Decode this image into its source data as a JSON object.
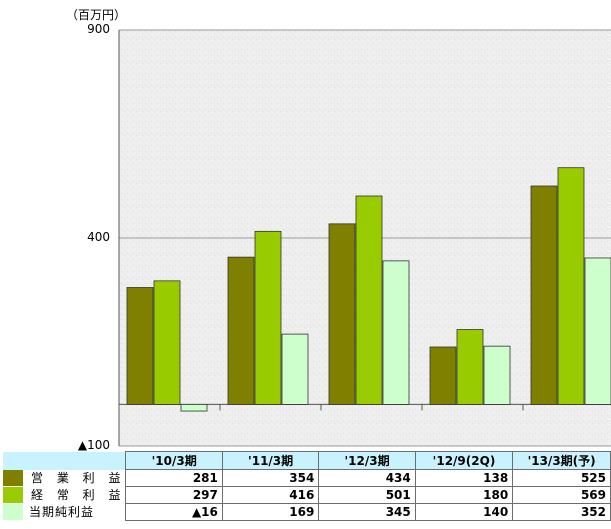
{
  "chart_data": {
    "type": "bar",
    "unit_label": "（百万円）",
    "categories": [
      "'10/3期",
      "'11/3期",
      "'12/3期",
      "'12/9(2Q)",
      "'13/3期(予)"
    ],
    "series": [
      {
        "name": "営 業 利 益",
        "color": "#808000",
        "values": [
          281,
          354,
          434,
          138,
          525
        ],
        "labels": [
          "281",
          "354",
          "434",
          "138",
          "525"
        ]
      },
      {
        "name": "経 常 利 益",
        "color": "#99cc00",
        "values": [
          297,
          416,
          501,
          180,
          569
        ],
        "labels": [
          "297",
          "416",
          "501",
          "180",
          "569"
        ]
      },
      {
        "name": "当期純利益",
        "color": "#ccffcc",
        "values": [
          -16,
          169,
          345,
          140,
          352
        ],
        "labels": [
          "▲16",
          "169",
          "345",
          "140",
          "352"
        ]
      }
    ],
    "ylim": [
      -100,
      900
    ],
    "ytick_labels": [
      {
        "value": 900,
        "label": "900"
      },
      {
        "value": 400,
        "label": "400"
      },
      {
        "value": -100,
        "label": "▲100"
      }
    ],
    "grid": true,
    "legend": "table-below"
  }
}
